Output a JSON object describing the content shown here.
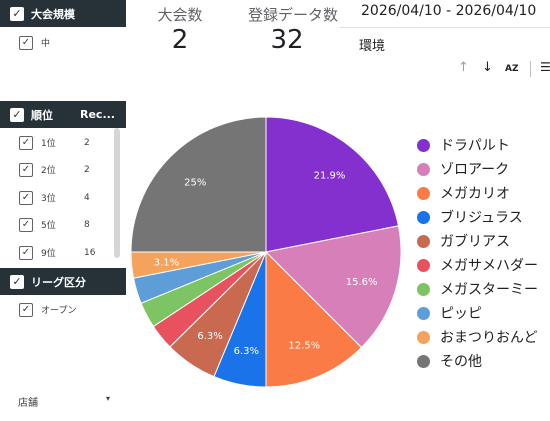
{
  "filters": {
    "size_group": {
      "header": "大会規模",
      "items": [
        {
          "label": "中"
        }
      ]
    },
    "rank_group": {
      "header": "順位",
      "col2": "Rec...",
      "items": [
        {
          "label": "1位",
          "count": "2"
        },
        {
          "label": "2位",
          "count": "2"
        },
        {
          "label": "3位",
          "count": "4"
        },
        {
          "label": "5位",
          "count": "8"
        },
        {
          "label": "9位",
          "count": "16"
        }
      ]
    },
    "league_group": {
      "header": "リーグ区分",
      "items": [
        {
          "label": "オープン"
        }
      ]
    },
    "store": {
      "label": "店舗",
      "arrow": "▾"
    },
    "check_glyph": "✓"
  },
  "scorecards": [
    {
      "label": "大会数",
      "value": "2"
    },
    {
      "label": "登録データ数",
      "value": "32"
    }
  ],
  "date_range": "2026/04/10 - 2026/04/10",
  "dimension": "環境",
  "toolbar": {
    "up": "↑",
    "down": "↓",
    "sort": "AZ",
    "filter": "☰"
  },
  "chart_data": {
    "type": "pie",
    "title": "",
    "slices": [
      {
        "label": "ドラパルト",
        "value": 21.9,
        "color": "#8430ce",
        "data_label": "21.9%"
      },
      {
        "label": "ゾロアーク",
        "value": 15.6,
        "color": "#d77fb8",
        "data_label": "15.6%"
      },
      {
        "label": "メガカリオ",
        "value": 12.5,
        "color": "#fa7b45",
        "data_label": "12.5%"
      },
      {
        "label": "ブリジュラス",
        "value": 6.3,
        "color": "#1a73e8",
        "data_label": "6.3%"
      },
      {
        "label": "ガブリアス",
        "value": 6.3,
        "color": "#c96a50",
        "data_label": "6.3%"
      },
      {
        "label": "メガサメハダー",
        "value": 3.1,
        "color": "#e8525e",
        "data_label": ""
      },
      {
        "label": "メガスターミー",
        "value": 3.1,
        "color": "#7dc465",
        "data_label": ""
      },
      {
        "label": "ピッピ",
        "value": 3.1,
        "color": "#5d9ed9",
        "data_label": ""
      },
      {
        "label": "おまつりおんど",
        "value": 3.1,
        "color": "#f5a25d",
        "data_label": "3.1%"
      },
      {
        "label": "その他",
        "value": 25,
        "color": "#757575",
        "data_label": "25%"
      }
    ],
    "legend_position": "right"
  }
}
